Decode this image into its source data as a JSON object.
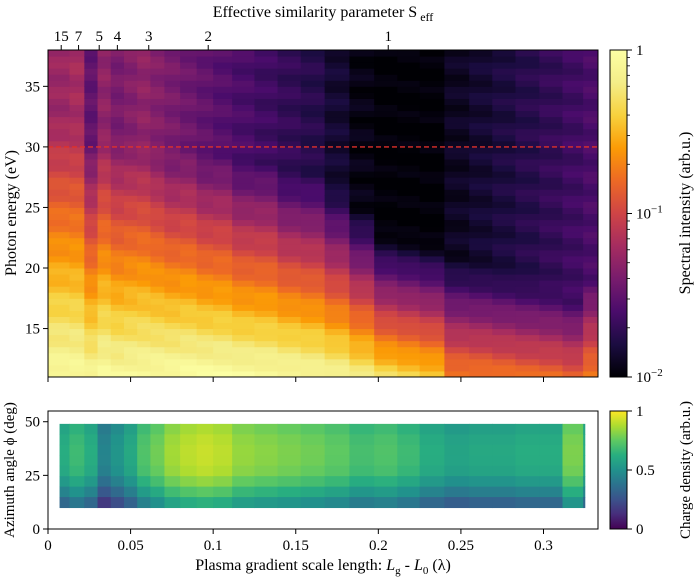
{
  "chart_data": [
    {
      "type": "heatmap",
      "title": "",
      "top_axis_label": "Effective similarity parameter S_eff",
      "top_axis_label_main": "Effective similarity parameter S",
      "top_axis_label_sub": "eff",
      "top_ticks": [
        {
          "label": "15",
          "x": 0.008
        },
        {
          "label": "7",
          "x": 0.0185
        },
        {
          "label": "5",
          "x": 0.031
        },
        {
          "label": "4",
          "x": 0.042
        },
        {
          "label": "3",
          "x": 0.061
        },
        {
          "label": "2",
          "x": 0.097
        },
        {
          "label": "1",
          "x": 0.206
        }
      ],
      "ylabel": "Photon energy (eV)",
      "ylim": [
        11,
        38
      ],
      "yticks": [
        15,
        20,
        25,
        30,
        35
      ],
      "xlim": [
        0.007,
        0.333
      ],
      "reference_line": {
        "y": 30,
        "color": "#e0302a",
        "style": "dashed"
      },
      "colorbar": {
        "label": "Spectral intensity (arb.u.)",
        "scale": "log",
        "range": [
          0.01,
          1
        ],
        "ticks": [
          "1",
          "10",
          "10"
        ],
        "tick_exponents": [
          "",
          "−1",
          "−2"
        ],
        "colormap": "inferno"
      },
      "columns_x": [
        0.008,
        0.018,
        0.026,
        0.034,
        0.042,
        0.05,
        0.058,
        0.066,
        0.075,
        0.085,
        0.095,
        0.105,
        0.118,
        0.132,
        0.146,
        0.16,
        0.175,
        0.19,
        0.205,
        0.218,
        0.232,
        0.248,
        0.262,
        0.276,
        0.29,
        0.305,
        0.318,
        0.33
      ],
      "intensity_profile": {
        "floor_log10": [
          -1.25,
          -1.2,
          -1.5,
          -1.3,
          -1.4,
          -1.35,
          -1.3,
          -1.35,
          -1.4,
          -1.45,
          -1.5,
          -1.55,
          -1.6,
          -1.65,
          -1.7,
          -1.75,
          -1.85,
          -1.95,
          -2.0,
          -2.0,
          -2.0,
          -1.9,
          -1.85,
          -1.8,
          -1.75,
          -1.7,
          -1.65,
          -1.6
        ],
        "peak_log10_at_11eV": [
          -0.05,
          -0.05,
          -0.1,
          -0.05,
          -0.08,
          -0.06,
          -0.05,
          -0.04,
          -0.03,
          -0.02,
          -0.02,
          -0.02,
          -0.03,
          -0.04,
          -0.05,
          -0.08,
          -0.12,
          -0.2,
          -0.3,
          -0.35,
          -0.4,
          -0.7,
          -0.72,
          -0.75,
          -0.78,
          -0.8,
          -0.85,
          -0.7
        ],
        "decay_eV": [
          9,
          9,
          7,
          8,
          7.5,
          7.5,
          7.5,
          7,
          6.5,
          6.5,
          6,
          6,
          5.5,
          5.5,
          5,
          5,
          4.5,
          4,
          3.5,
          3.5,
          3.5,
          4,
          4,
          4,
          4,
          4,
          4,
          4.5
        ]
      }
    },
    {
      "type": "heatmap",
      "title": "",
      "xlabel": "Plasma gradient scale length: L_g - L_0 (λ)",
      "xlabel_prefix": "Plasma gradient scale length: ",
      "xlabel_L": "L",
      "xlabel_sub_g": "g",
      "xlabel_mid": " - ",
      "xlabel_sub_0": "0",
      "xlabel_suffix": " (λ)",
      "xlim": [
        0,
        0.333
      ],
      "xticks": [
        "0",
        "0.05",
        "0.1",
        "0.15",
        "0.2",
        "0.25",
        "0.3"
      ],
      "xtick_values": [
        0,
        0.05,
        0.1,
        0.15,
        0.2,
        0.25,
        0.3
      ],
      "ylabel": "Azimuth angle ϕ (deg)",
      "ylim": [
        0,
        55
      ],
      "yticks": [
        0,
        25,
        50
      ],
      "data_range_y": [
        10,
        49
      ],
      "colorbar": {
        "label": "Charge density (arb.u.)",
        "range": [
          0,
          1
        ],
        "ticks": [
          "0",
          "0.5",
          "1"
        ],
        "colormap": "viridis"
      },
      "columns_x": [
        0.008,
        0.018,
        0.026,
        0.034,
        0.042,
        0.05,
        0.058,
        0.066,
        0.075,
        0.085,
        0.095,
        0.105,
        0.118,
        0.132,
        0.146,
        0.16,
        0.175,
        0.19,
        0.205,
        0.218,
        0.232,
        0.248,
        0.262,
        0.276,
        0.29,
        0.305,
        0.318,
        0.33
      ],
      "column_values": [
        0.62,
        0.68,
        0.62,
        0.45,
        0.52,
        0.6,
        0.72,
        0.78,
        0.86,
        0.9,
        0.92,
        0.9,
        0.84,
        0.82,
        0.8,
        0.78,
        0.75,
        0.7,
        0.72,
        0.68,
        0.62,
        0.58,
        0.6,
        0.6,
        0.62,
        0.62,
        0.8,
        0.62
      ]
    }
  ]
}
